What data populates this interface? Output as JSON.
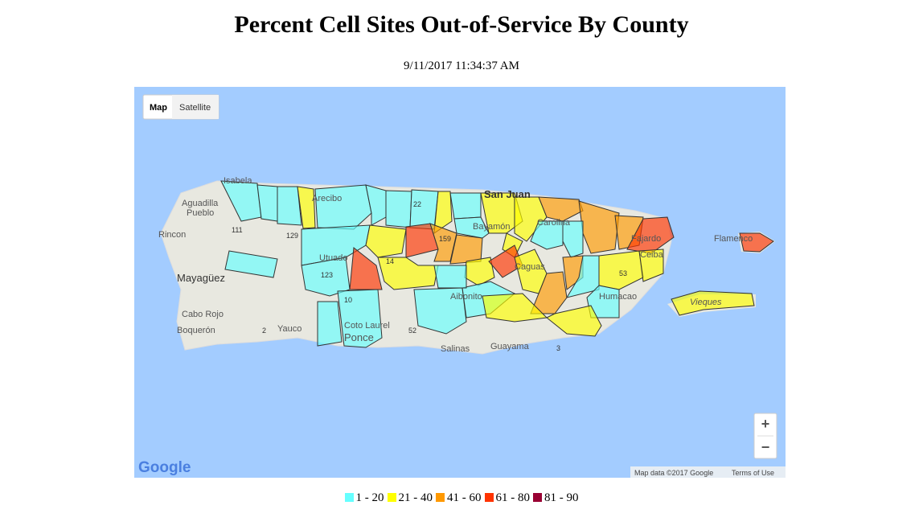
{
  "header": {
    "title": "Percent Cell Sites Out-of-Service By County",
    "timestamp": "9/11/2017 11:34:37 AM"
  },
  "map": {
    "buttons": [
      "Map",
      "Satellite"
    ],
    "places": [
      "Isabela",
      "Aguadilla",
      "Pueblo",
      "Rincon",
      "Mayagüez",
      "Cabo Rojo",
      "Boquerón",
      "Yauco",
      "Arecibo",
      "Utuado",
      "Coto Laurel",
      "Ponce",
      "San Juan",
      "Bayamón",
      "Carolina",
      "Caguas",
      "Aibonito",
      "Salinas",
      "Guayama",
      "Humacao",
      "Fajardo",
      "Ceiba",
      "Flamenco",
      "Vieques"
    ],
    "roads": [
      "111",
      "2",
      "129",
      "123",
      "10",
      "52",
      "3",
      "22",
      "159",
      "14",
      "53"
    ],
    "zoom": [
      "+",
      "−"
    ],
    "brand": "Google",
    "attribution": "Map data ©2017 Google",
    "terms": "Terms of Use"
  },
  "legend": [
    {
      "label": "1 - 20",
      "color": "#66ffff"
    },
    {
      "label": "21 - 40",
      "color": "#ffff00"
    },
    {
      "label": "41 - 60",
      "color": "#ff9900"
    },
    {
      "label": "61 - 80",
      "color": "#ff3300"
    },
    {
      "label": "81 - 90",
      "color": "#990033"
    }
  ]
}
